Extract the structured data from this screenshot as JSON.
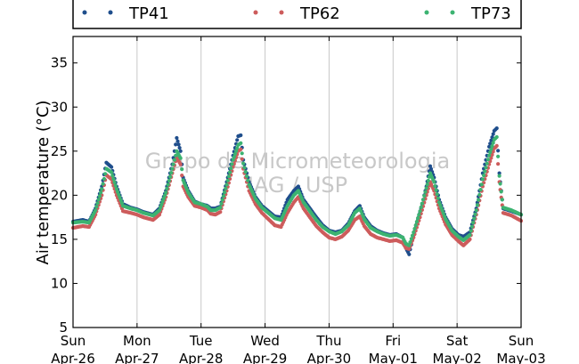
{
  "chart_data": {
    "type": "scatter",
    "ylabel": "Air temperature (°C)",
    "ylim": [
      5,
      38
    ],
    "yticks": [
      5,
      10,
      15,
      20,
      25,
      30,
      35
    ],
    "xlim": [
      0,
      7
    ],
    "x_tick_labels": [
      {
        "day": "Sun",
        "date": "Apr-26"
      },
      {
        "day": "Mon",
        "date": "Apr-27"
      },
      {
        "day": "Tue",
        "date": "Apr-28"
      },
      {
        "day": "Wed",
        "date": "Apr-29"
      },
      {
        "day": "Thu",
        "date": "Apr-30"
      },
      {
        "day": "Fri",
        "date": "May-01"
      },
      {
        "day": "Sat",
        "date": "May-02"
      },
      {
        "day": "Sun",
        "date": "May-03"
      }
    ],
    "grid": "vertical",
    "legend_position": "top",
    "watermark": [
      "Grupo de Micrometeorologia",
      "IAG / USP"
    ],
    "series": [
      {
        "name": "TP41",
        "color": "#1f4e8c",
        "points": [
          [
            0.0,
            17.0
          ],
          [
            0.15,
            17.2
          ],
          [
            0.25,
            17.0
          ],
          [
            0.35,
            18.5
          ],
          [
            0.45,
            21.0
          ],
          [
            0.52,
            23.7
          ],
          [
            0.6,
            23.2
          ],
          [
            0.68,
            21.0
          ],
          [
            0.78,
            19.0
          ],
          [
            0.9,
            18.6
          ],
          [
            1.0,
            18.4
          ],
          [
            1.1,
            18.1
          ],
          [
            1.25,
            17.8
          ],
          [
            1.35,
            18.5
          ],
          [
            1.45,
            20.5
          ],
          [
            1.55,
            23.5
          ],
          [
            1.62,
            26.5
          ],
          [
            1.68,
            25.0
          ],
          [
            1.72,
            22.0
          ],
          [
            1.8,
            20.5
          ],
          [
            1.9,
            19.3
          ],
          [
            2.0,
            19.0
          ],
          [
            2.1,
            18.8
          ],
          [
            2.15,
            18.5
          ],
          [
            2.22,
            18.5
          ],
          [
            2.3,
            18.7
          ],
          [
            2.4,
            21.5
          ],
          [
            2.5,
            24.5
          ],
          [
            2.58,
            26.7
          ],
          [
            2.62,
            26.8
          ],
          [
            2.66,
            24.0
          ],
          [
            2.75,
            21.5
          ],
          [
            2.85,
            19.8
          ],
          [
            2.95,
            18.8
          ],
          [
            3.05,
            18.2
          ],
          [
            3.15,
            17.6
          ],
          [
            3.25,
            17.5
          ],
          [
            3.35,
            19.5
          ],
          [
            3.45,
            20.5
          ],
          [
            3.52,
            21.0
          ],
          [
            3.6,
            19.5
          ],
          [
            3.7,
            18.5
          ],
          [
            3.8,
            17.5
          ],
          [
            3.9,
            16.6
          ],
          [
            4.0,
            16.0
          ],
          [
            4.1,
            15.8
          ],
          [
            4.2,
            16.0
          ],
          [
            4.3,
            16.8
          ],
          [
            4.4,
            18.2
          ],
          [
            4.48,
            18.8
          ],
          [
            4.55,
            17.5
          ],
          [
            4.65,
            16.5
          ],
          [
            4.75,
            16.0
          ],
          [
            4.85,
            15.7
          ],
          [
            4.95,
            15.5
          ],
          [
            5.05,
            15.6
          ],
          [
            5.15,
            15.2
          ],
          [
            5.2,
            14.0
          ],
          [
            5.25,
            13.3
          ],
          [
            5.32,
            15.5
          ],
          [
            5.42,
            18.0
          ],
          [
            5.52,
            21.0
          ],
          [
            5.58,
            23.3
          ],
          [
            5.64,
            22.0
          ],
          [
            5.72,
            19.5
          ],
          [
            5.82,
            17.5
          ],
          [
            5.92,
            16.2
          ],
          [
            6.02,
            15.5
          ],
          [
            6.1,
            15.3
          ],
          [
            6.2,
            15.8
          ],
          [
            6.3,
            18.5
          ],
          [
            6.4,
            22.5
          ],
          [
            6.5,
            25.5
          ],
          [
            6.58,
            27.3
          ],
          [
            6.62,
            27.6
          ],
          [
            6.66,
            22.5
          ],
          [
            6.72,
            18.5
          ],
          [
            6.85,
            18.2
          ],
          [
            7.0,
            17.8
          ]
        ]
      },
      {
        "name": "TP62",
        "color": "#cd5c5c",
        "points": [
          [
            0.0,
            16.3
          ],
          [
            0.15,
            16.5
          ],
          [
            0.25,
            16.4
          ],
          [
            0.35,
            17.8
          ],
          [
            0.45,
            20.0
          ],
          [
            0.52,
            22.3
          ],
          [
            0.6,
            21.8
          ],
          [
            0.68,
            20.0
          ],
          [
            0.78,
            18.2
          ],
          [
            0.9,
            18.0
          ],
          [
            1.0,
            17.8
          ],
          [
            1.1,
            17.5
          ],
          [
            1.25,
            17.2
          ],
          [
            1.35,
            17.8
          ],
          [
            1.45,
            19.8
          ],
          [
            1.55,
            22.5
          ],
          [
            1.62,
            24.3
          ],
          [
            1.68,
            23.5
          ],
          [
            1.72,
            21.0
          ],
          [
            1.8,
            19.8
          ],
          [
            1.9,
            18.8
          ],
          [
            2.0,
            18.6
          ],
          [
            2.1,
            18.3
          ],
          [
            2.15,
            17.9
          ],
          [
            2.22,
            17.8
          ],
          [
            2.3,
            18.1
          ],
          [
            2.4,
            20.5
          ],
          [
            2.5,
            23.2
          ],
          [
            2.58,
            25.0
          ],
          [
            2.62,
            25.2
          ],
          [
            2.66,
            23.0
          ],
          [
            2.75,
            20.5
          ],
          [
            2.85,
            19.0
          ],
          [
            2.95,
            18.0
          ],
          [
            3.05,
            17.3
          ],
          [
            3.15,
            16.6
          ],
          [
            3.25,
            16.4
          ],
          [
            3.35,
            18.0
          ],
          [
            3.45,
            19.2
          ],
          [
            3.52,
            19.8
          ],
          [
            3.6,
            18.5
          ],
          [
            3.7,
            17.5
          ],
          [
            3.8,
            16.5
          ],
          [
            3.9,
            15.8
          ],
          [
            4.0,
            15.2
          ],
          [
            4.1,
            15.0
          ],
          [
            4.2,
            15.3
          ],
          [
            4.3,
            16.0
          ],
          [
            4.4,
            17.2
          ],
          [
            4.48,
            17.6
          ],
          [
            4.55,
            16.5
          ],
          [
            4.65,
            15.6
          ],
          [
            4.75,
            15.2
          ],
          [
            4.85,
            15.0
          ],
          [
            4.95,
            14.8
          ],
          [
            5.05,
            14.9
          ],
          [
            5.15,
            14.6
          ],
          [
            5.2,
            14.0
          ],
          [
            5.25,
            13.9
          ],
          [
            5.32,
            15.2
          ],
          [
            5.42,
            17.5
          ],
          [
            5.52,
            20.0
          ],
          [
            5.58,
            21.5
          ],
          [
            5.64,
            20.5
          ],
          [
            5.72,
            18.5
          ],
          [
            5.82,
            16.7
          ],
          [
            5.92,
            15.5
          ],
          [
            6.02,
            14.8
          ],
          [
            6.1,
            14.3
          ],
          [
            6.2,
            15.0
          ],
          [
            6.3,
            17.8
          ],
          [
            6.4,
            21.0
          ],
          [
            6.5,
            23.5
          ],
          [
            6.58,
            25.3
          ],
          [
            6.62,
            25.6
          ],
          [
            6.66,
            21.5
          ],
          [
            6.72,
            18.0
          ],
          [
            6.85,
            17.7
          ],
          [
            7.0,
            17.1
          ]
        ]
      },
      {
        "name": "TP73",
        "color": "#3cb371",
        "points": [
          [
            0.0,
            16.9
          ],
          [
            0.15,
            17.0
          ],
          [
            0.25,
            16.9
          ],
          [
            0.35,
            18.3
          ],
          [
            0.45,
            20.7
          ],
          [
            0.52,
            23.0
          ],
          [
            0.6,
            22.6
          ],
          [
            0.68,
            20.7
          ],
          [
            0.78,
            18.8
          ],
          [
            0.9,
            18.5
          ],
          [
            1.0,
            18.3
          ],
          [
            1.1,
            18.0
          ],
          [
            1.25,
            17.7
          ],
          [
            1.35,
            18.3
          ],
          [
            1.45,
            20.3
          ],
          [
            1.55,
            23.0
          ],
          [
            1.62,
            25.0
          ],
          [
            1.68,
            24.2
          ],
          [
            1.72,
            21.7
          ],
          [
            1.8,
            20.3
          ],
          [
            1.9,
            19.2
          ],
          [
            2.0,
            19.0
          ],
          [
            2.1,
            18.7
          ],
          [
            2.15,
            18.3
          ],
          [
            2.22,
            18.3
          ],
          [
            2.3,
            18.6
          ],
          [
            2.4,
            21.2
          ],
          [
            2.5,
            24.0
          ],
          [
            2.58,
            25.7
          ],
          [
            2.62,
            25.9
          ],
          [
            2.66,
            23.6
          ],
          [
            2.75,
            21.2
          ],
          [
            2.85,
            19.6
          ],
          [
            2.95,
            18.6
          ],
          [
            3.05,
            18.0
          ],
          [
            3.15,
            17.4
          ],
          [
            3.25,
            17.2
          ],
          [
            3.35,
            18.8
          ],
          [
            3.45,
            20.0
          ],
          [
            3.52,
            20.5
          ],
          [
            3.6,
            19.2
          ],
          [
            3.7,
            18.2
          ],
          [
            3.8,
            17.2
          ],
          [
            3.9,
            16.4
          ],
          [
            4.0,
            15.9
          ],
          [
            4.1,
            15.6
          ],
          [
            4.2,
            15.9
          ],
          [
            4.3,
            16.6
          ],
          [
            4.4,
            18.0
          ],
          [
            4.48,
            18.5
          ],
          [
            4.55,
            17.3
          ],
          [
            4.65,
            16.3
          ],
          [
            4.75,
            15.9
          ],
          [
            4.85,
            15.6
          ],
          [
            4.95,
            15.4
          ],
          [
            5.05,
            15.5
          ],
          [
            5.15,
            15.2
          ],
          [
            5.2,
            14.5
          ],
          [
            5.25,
            14.3
          ],
          [
            5.32,
            15.8
          ],
          [
            5.42,
            18.2
          ],
          [
            5.52,
            20.8
          ],
          [
            5.58,
            22.5
          ],
          [
            5.64,
            21.5
          ],
          [
            5.72,
            19.2
          ],
          [
            5.82,
            17.3
          ],
          [
            5.92,
            16.0
          ],
          [
            6.02,
            15.3
          ],
          [
            6.1,
            14.9
          ],
          [
            6.2,
            15.5
          ],
          [
            6.3,
            18.3
          ],
          [
            6.4,
            21.8
          ],
          [
            6.5,
            24.5
          ],
          [
            6.58,
            26.3
          ],
          [
            6.62,
            26.6
          ],
          [
            6.66,
            22.2
          ],
          [
            6.72,
            18.6
          ],
          [
            6.85,
            18.3
          ],
          [
            7.0,
            17.8
          ]
        ]
      }
    ]
  }
}
